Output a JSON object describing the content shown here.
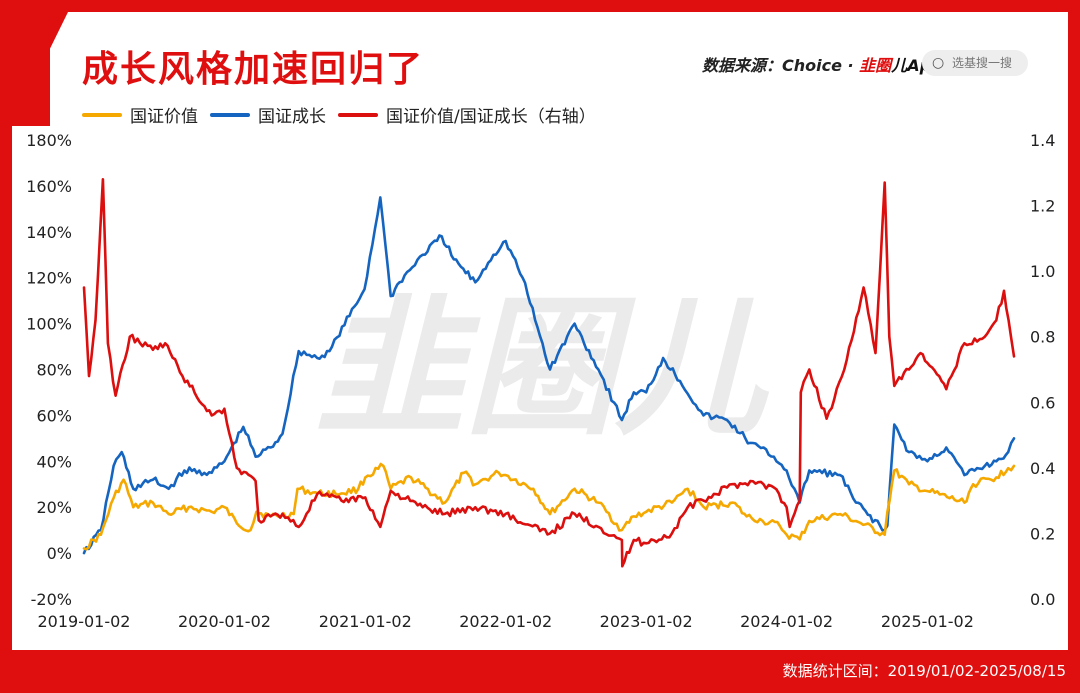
{
  "title": "成长风格加速回归了",
  "source": {
    "prefix": "数据来源：Choice · ",
    "brand_red": "韭圈",
    "brand_rest": "儿App"
  },
  "search": {
    "icon": "search-icon",
    "placeholder": "选基搜一搜"
  },
  "footer": "数据统计区间：2019/01/02-2025/08/15",
  "watermark": "韭圈儿",
  "colors": {
    "value": "#f5a800",
    "growth": "#1565c0",
    "ratio": "#dc0f0f",
    "brand": "#e00f0f"
  },
  "chart_data": {
    "type": "line",
    "x_ticks": [
      "2019-01-02",
      "2020-01-02",
      "2021-01-02",
      "2022-01-02",
      "2023-01-02",
      "2024-01-02",
      "2025-01-02"
    ],
    "x_range": [
      "2019-01-02",
      "2025-08-15"
    ],
    "y_left": {
      "ticks": [
        "180%",
        "160%",
        "140%",
        "120%",
        "100%",
        "80%",
        "60%",
        "40%",
        "20%",
        "0%",
        "-20%"
      ],
      "range": [
        -20,
        180
      ]
    },
    "y_right": {
      "ticks": [
        "1.4",
        "1.2",
        "1.0",
        "0.8",
        "0.6",
        "0.4",
        "0.2",
        "0.0"
      ],
      "range": [
        0,
        1.4
      ]
    },
    "legend": {
      "placement": "top-left"
    },
    "series": [
      {
        "name": "国证价值",
        "axis": "left",
        "points": [
          [
            "2019-01-02",
            2
          ],
          [
            "2019-02-15",
            8
          ],
          [
            "2019-03-20",
            24
          ],
          [
            "2019-04-15",
            32
          ],
          [
            "2019-05-10",
            20
          ],
          [
            "2019-06-30",
            22
          ],
          [
            "2019-08-10",
            17
          ],
          [
            "2019-10-01",
            20
          ],
          [
            "2019-11-30",
            18
          ],
          [
            "2020-01-02",
            20
          ],
          [
            "2020-02-03",
            13
          ],
          [
            "2020-03-10",
            10
          ],
          [
            "2020-03-25",
            18
          ],
          [
            "2020-05-01",
            16
          ],
          [
            "2020-06-30",
            17
          ],
          [
            "2020-07-10",
            28
          ],
          [
            "2020-09-01",
            26
          ],
          [
            "2020-11-01",
            26
          ],
          [
            "2020-12-15",
            28
          ],
          [
            "2021-01-02",
            33
          ],
          [
            "2021-02-18",
            38
          ],
          [
            "2021-03-09",
            28
          ],
          [
            "2021-05-01",
            33
          ],
          [
            "2021-07-28",
            22
          ],
          [
            "2021-09-15",
            35
          ],
          [
            "2021-10-15",
            30
          ],
          [
            "2021-12-15",
            35
          ],
          [
            "2022-01-02",
            34
          ],
          [
            "2022-03-15",
            28
          ],
          [
            "2022-04-27",
            17
          ],
          [
            "2022-06-30",
            28
          ],
          [
            "2022-08-31",
            22
          ],
          [
            "2022-10-31",
            10
          ],
          [
            "2022-12-01",
            16
          ],
          [
            "2023-01-02",
            18
          ],
          [
            "2023-03-10",
            22
          ],
          [
            "2023-04-20",
            28
          ],
          [
            "2023-06-01",
            20
          ],
          [
            "2023-08-15",
            22
          ],
          [
            "2023-09-20",
            16
          ],
          [
            "2023-11-01",
            14
          ],
          [
            "2023-12-15",
            12
          ],
          [
            "2024-01-02",
            8
          ],
          [
            "2024-02-05",
            6
          ],
          [
            "2024-03-01",
            14
          ],
          [
            "2024-05-20",
            17
          ],
          [
            "2024-06-30",
            14
          ],
          [
            "2024-09-13",
            8
          ],
          [
            "2024-09-20",
            18
          ],
          [
            "2024-10-08",
            36
          ],
          [
            "2024-11-15",
            30
          ],
          [
            "2025-01-02",
            27
          ],
          [
            "2025-04-08",
            22
          ],
          [
            "2025-05-01",
            30
          ],
          [
            "2025-06-30",
            33
          ],
          [
            "2025-07-31",
            37
          ],
          [
            "2025-08-15",
            38
          ]
        ]
      },
      {
        "name": "国证成长",
        "axis": "left",
        "points": [
          [
            "2019-01-02",
            0
          ],
          [
            "2019-02-15",
            10
          ],
          [
            "2019-03-20",
            38
          ],
          [
            "2019-04-10",
            44
          ],
          [
            "2019-05-10",
            28
          ],
          [
            "2019-06-30",
            32
          ],
          [
            "2019-08-10",
            28
          ],
          [
            "2019-09-20",
            36
          ],
          [
            "2019-11-30",
            35
          ],
          [
            "2020-01-02",
            40
          ],
          [
            "2020-02-20",
            55
          ],
          [
            "2020-03-23",
            42
          ],
          [
            "2020-05-01",
            46
          ],
          [
            "2020-06-01",
            52
          ],
          [
            "2020-07-13",
            88
          ],
          [
            "2020-08-30",
            85
          ],
          [
            "2020-10-01",
            88
          ],
          [
            "2020-12-31",
            115
          ],
          [
            "2021-02-10",
            155
          ],
          [
            "2021-03-09",
            112
          ],
          [
            "2021-04-01",
            118
          ],
          [
            "2021-05-31",
            130
          ],
          [
            "2021-07-20",
            138
          ],
          [
            "2021-08-20",
            128
          ],
          [
            "2021-10-15",
            118
          ],
          [
            "2021-12-01",
            130
          ],
          [
            "2022-01-02",
            136
          ],
          [
            "2022-02-15",
            120
          ],
          [
            "2022-04-27",
            80
          ],
          [
            "2022-06-30",
            100
          ],
          [
            "2022-08-31",
            80
          ],
          [
            "2022-10-31",
            58
          ],
          [
            "2022-12-01",
            70
          ],
          [
            "2023-01-02",
            70
          ],
          [
            "2023-02-15",
            85
          ],
          [
            "2023-03-31",
            75
          ],
          [
            "2023-05-31",
            60
          ],
          [
            "2023-07-31",
            58
          ],
          [
            "2023-09-30",
            48
          ],
          [
            "2023-11-30",
            42
          ],
          [
            "2024-01-02",
            36
          ],
          [
            "2024-02-05",
            22
          ],
          [
            "2024-03-01",
            36
          ],
          [
            "2024-05-20",
            34
          ],
          [
            "2024-06-30",
            22
          ],
          [
            "2024-09-13",
            10
          ],
          [
            "2024-09-20",
            12
          ],
          [
            "2024-10-08",
            56
          ],
          [
            "2024-11-15",
            44
          ],
          [
            "2025-01-02",
            40
          ],
          [
            "2025-02-20",
            46
          ],
          [
            "2025-04-08",
            34
          ],
          [
            "2025-05-31",
            38
          ],
          [
            "2025-06-30",
            40
          ],
          [
            "2025-07-31",
            44
          ],
          [
            "2025-08-15",
            50
          ]
        ]
      },
      {
        "name": "国证价值/国证成长（右轴）",
        "axis": "right",
        "points": [
          [
            "2019-01-02",
            0.95
          ],
          [
            "2019-01-15",
            0.68
          ],
          [
            "2019-02-01",
            0.85
          ],
          [
            "2019-02-20",
            1.28
          ],
          [
            "2019-03-05",
            0.78
          ],
          [
            "2019-03-25",
            0.62
          ],
          [
            "2019-05-01",
            0.8
          ],
          [
            "2019-06-30",
            0.76
          ],
          [
            "2019-08-01",
            0.78
          ],
          [
            "2019-09-15",
            0.68
          ],
          [
            "2019-11-30",
            0.56
          ],
          [
            "2020-01-02",
            0.58
          ],
          [
            "2020-02-03",
            0.4
          ],
          [
            "2020-03-23",
            0.36
          ],
          [
            "2020-03-31",
            0.24
          ],
          [
            "2020-06-01",
            0.26
          ],
          [
            "2020-07-13",
            0.22
          ],
          [
            "2020-08-30",
            0.32
          ],
          [
            "2020-11-01",
            0.3
          ],
          [
            "2021-01-02",
            0.31
          ],
          [
            "2021-02-10",
            0.22
          ],
          [
            "2021-03-09",
            0.33
          ],
          [
            "2021-05-31",
            0.28
          ],
          [
            "2021-07-28",
            0.26
          ],
          [
            "2021-10-15",
            0.28
          ],
          [
            "2022-01-02",
            0.26
          ],
          [
            "2022-02-15",
            0.23
          ],
          [
            "2022-04-27",
            0.2
          ],
          [
            "2022-06-30",
            0.26
          ],
          [
            "2022-08-31",
            0.22
          ],
          [
            "2022-10-31",
            0.18
          ],
          [
            "2022-11-01",
            0.1
          ],
          [
            "2022-12-01",
            0.18
          ],
          [
            "2023-01-02",
            0.17
          ],
          [
            "2023-03-10",
            0.2
          ],
          [
            "2023-04-20",
            0.28
          ],
          [
            "2023-05-31",
            0.3
          ],
          [
            "2023-07-31",
            0.34
          ],
          [
            "2023-09-30",
            0.36
          ],
          [
            "2023-11-30",
            0.34
          ],
          [
            "2024-01-02",
            0.28
          ],
          [
            "2024-01-10",
            0.22
          ],
          [
            "2024-02-05",
            0.3
          ],
          [
            "2024-02-08",
            0.63
          ],
          [
            "2024-03-01",
            0.7
          ],
          [
            "2024-04-15",
            0.55
          ],
          [
            "2024-05-31",
            0.7
          ],
          [
            "2024-07-20",
            0.95
          ],
          [
            "2024-08-20",
            0.75
          ],
          [
            "2024-09-13",
            1.27
          ],
          [
            "2024-09-25",
            0.8
          ],
          [
            "2024-10-08",
            0.65
          ],
          [
            "2024-11-15",
            0.7
          ],
          [
            "2024-12-15",
            0.75
          ],
          [
            "2025-01-02",
            0.72
          ],
          [
            "2025-02-20",
            0.64
          ],
          [
            "2025-04-08",
            0.78
          ],
          [
            "2025-05-31",
            0.8
          ],
          [
            "2025-06-30",
            0.85
          ],
          [
            "2025-07-20",
            0.94
          ],
          [
            "2025-08-01",
            0.85
          ],
          [
            "2025-08-15",
            0.74
          ]
        ]
      }
    ]
  }
}
